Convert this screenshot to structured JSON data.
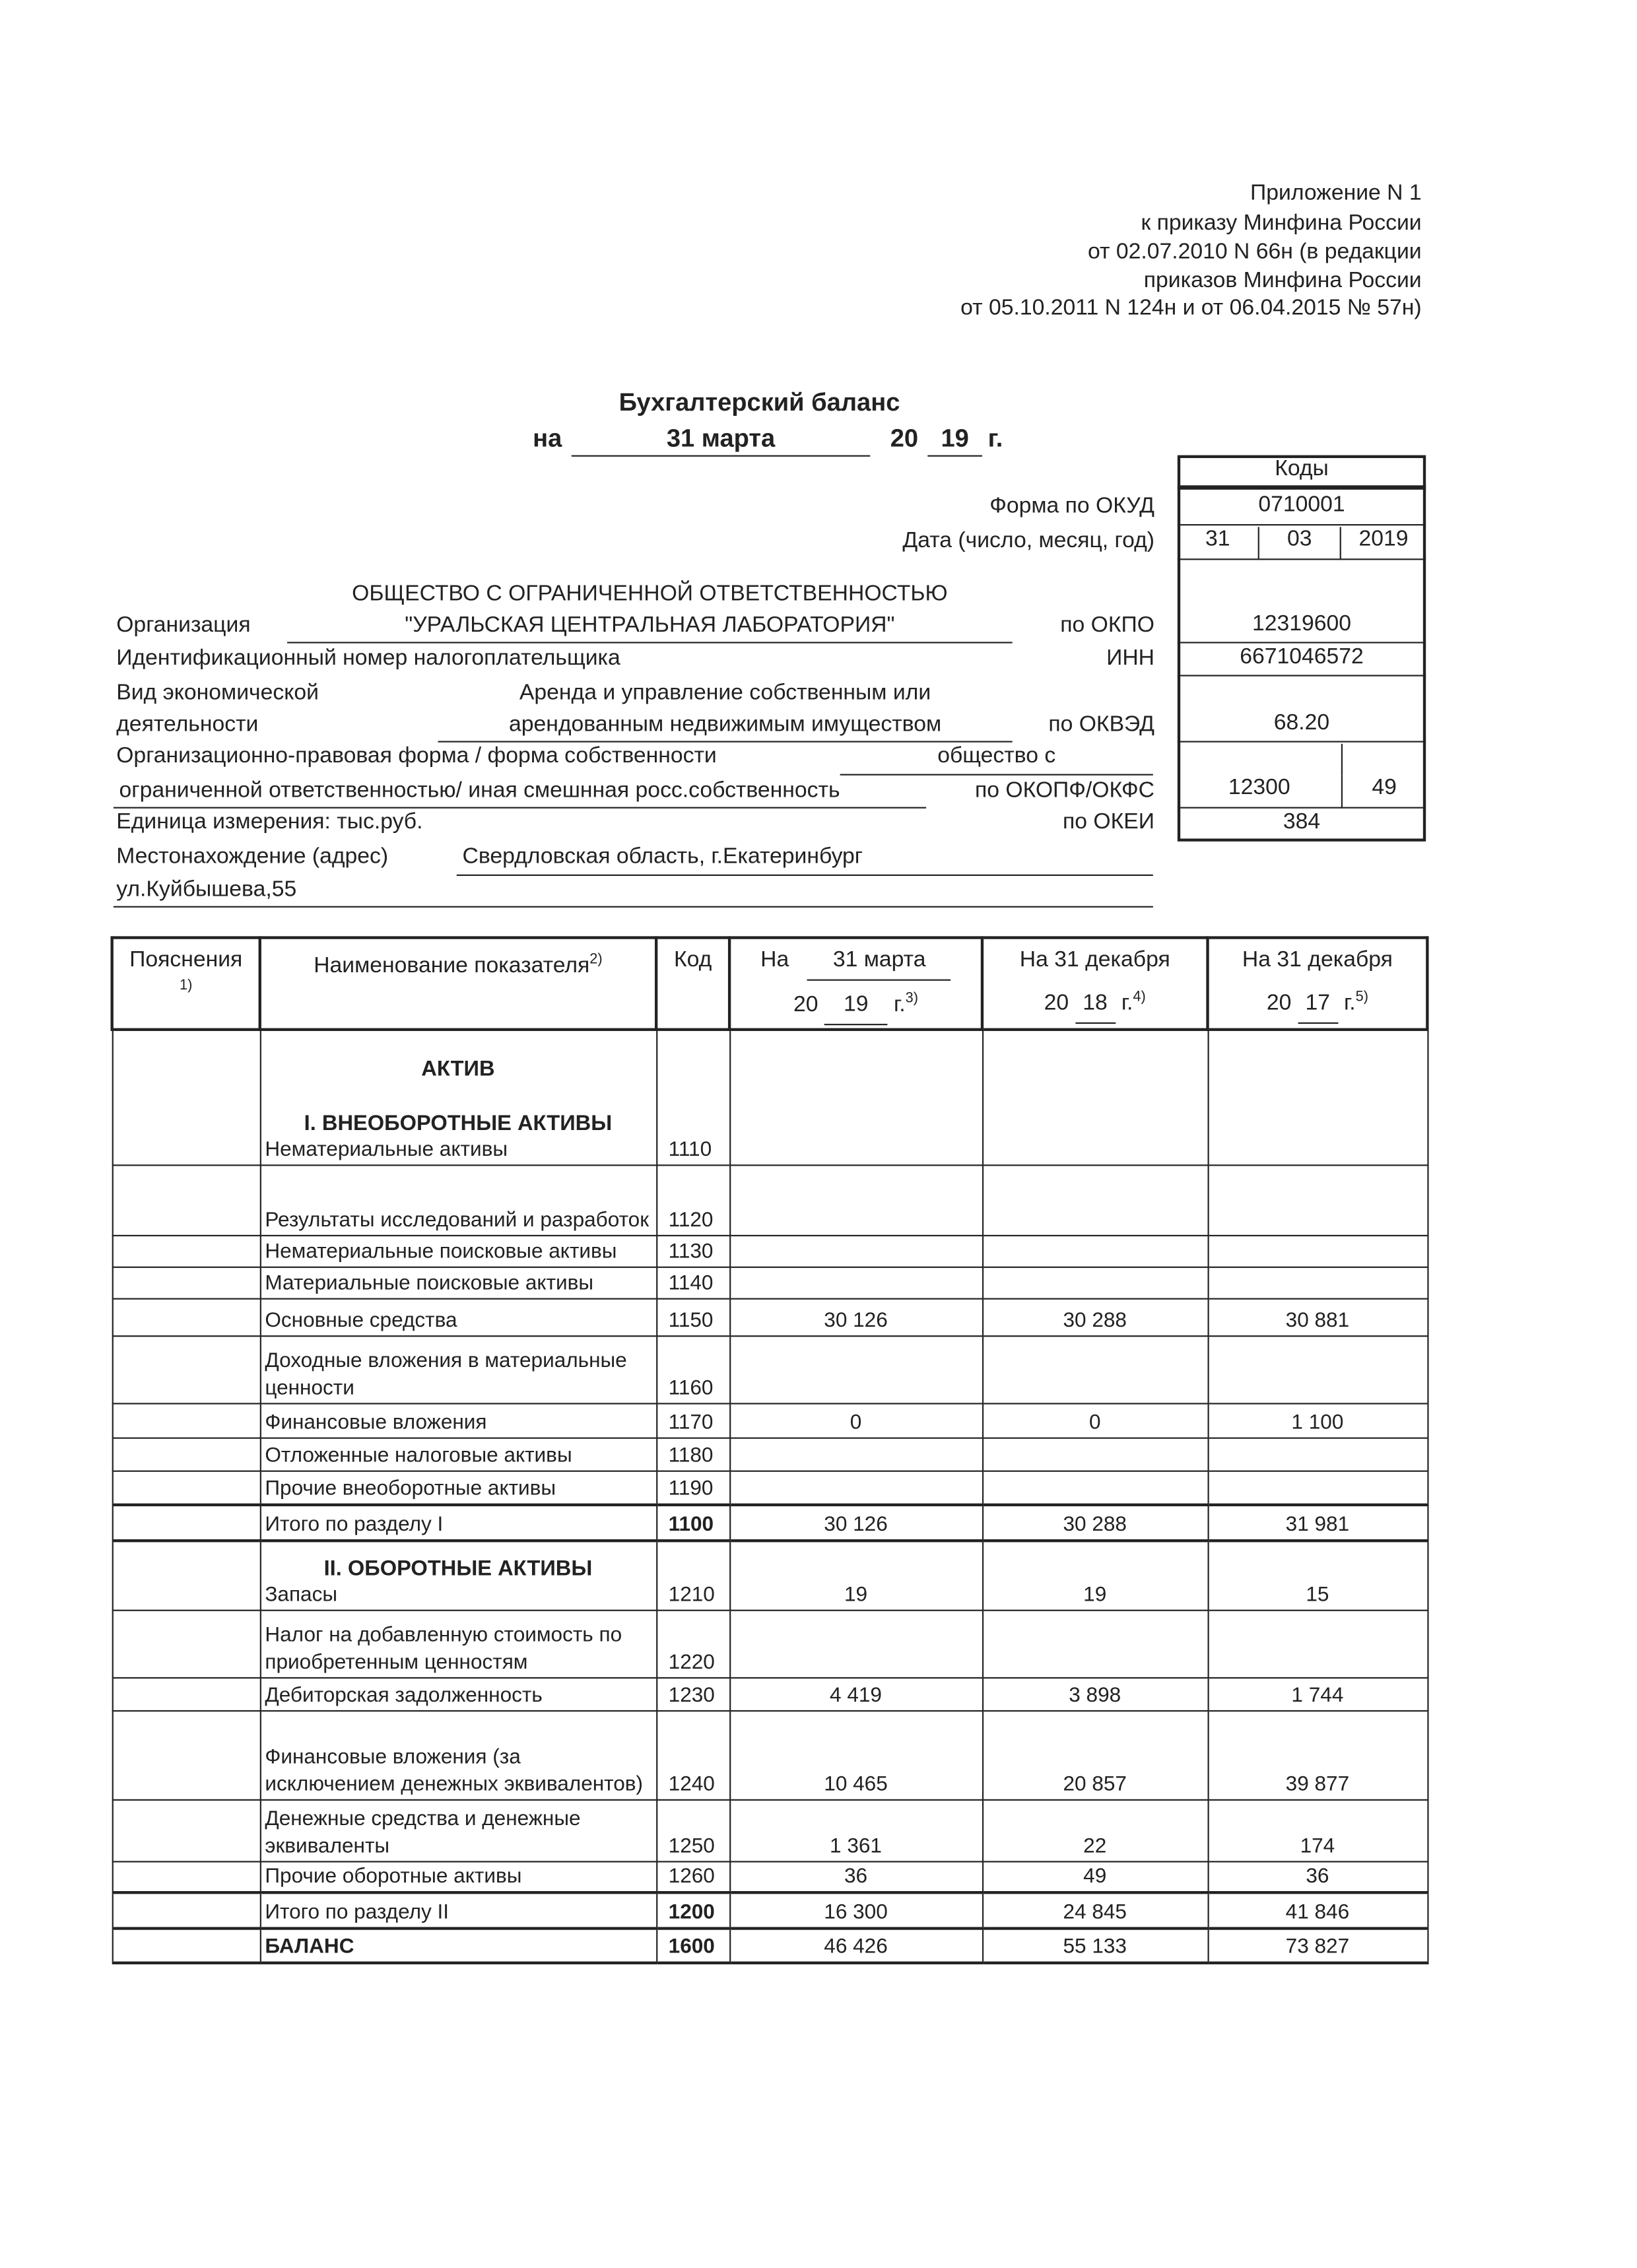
{
  "appendix": [
    "Приложение N 1",
    "к приказу Минфина России",
    "от 02.07.2010 N 66н (в редакции",
    "приказов Минфина России",
    "от 05.10.2011 N 124н и от 06.04.2015 № 57н)"
  ],
  "title": "Бухгалтерский баланс",
  "date_line": {
    "prefix": "на",
    "day_month": "31 марта",
    "century": "20",
    "year": "19",
    "suffix": "г."
  },
  "codes": {
    "header": "Коды",
    "okud_label": "Форма по ОКУД",
    "okud": "0710001",
    "date_label": "Дата (число, месяц, год)",
    "day": "31",
    "month": "03",
    "year": "2019",
    "okpo_label": "по ОКПО",
    "okpo": "12319600",
    "inn_label": "ИНН",
    "inn": "6671046572",
    "okved_label": "по ОКВЭД",
    "okved": "68.20",
    "okopf_label": "по ОКОПФ/ОКФС",
    "okopf": "12300",
    "okfs": "49",
    "okei_label": "по ОКЕИ",
    "okei": "384"
  },
  "org": {
    "label": "Организация",
    "name_line1": "ОБЩЕСТВО С ОГРАНИЧЕННОЙ ОТВЕТСТВЕННОСТЬЮ",
    "name_line2": "\"УРАЛЬСКАЯ ЦЕНТРАЛЬНАЯ ЛАБОРАТОРИЯ\"",
    "inn_label": "Идентификационный номер налогоплательщика",
    "activity_label1": "Вид экономической",
    "activity_label2": "деятельности",
    "activity_value1": "Аренда и управление собственным или",
    "activity_value2": "арендованным недвижимым имуществом",
    "legal_form_label": "Организационно-правовая форма / форма собственности",
    "legal_form_value1": "общество с",
    "legal_form_value2": "ограниченной ответственностью/ иная смешнная росс.собственность",
    "unit_label": "Единица измерения: тыс.руб.",
    "address_label": "Местонахождение (адрес)",
    "address_value1": "Свердловская область, г.Екатеринбург",
    "address_value2": "ул.Куйбышева,55"
  },
  "table": {
    "headers": {
      "notes": "Пояснения",
      "notes_sup": "1)",
      "name": "Наименование показателя",
      "name_sup": "2)",
      "code": "Код",
      "col1_prefix": "На",
      "col1_date": "31 марта",
      "col1_century": "20",
      "col1_year": "19",
      "col1_suffix": "г.",
      "col1_sup": "3)",
      "col2_top": "На 31 декабря",
      "col2_century": "20",
      "col2_year": "18",
      "col2_suffix": "г.",
      "col2_sup": "4)",
      "col3_top": "На 31 декабря",
      "col3_century": "20",
      "col3_year": "17",
      "col3_suffix": "г.",
      "col3_sup": "5)"
    },
    "rows": [
      {
        "heading": [
          "АКТИВ",
          "",
          "I. ВНЕОБОРОТНЫЕ АКТИВЫ"
        ],
        "name": "Нематериальные активы",
        "code": "1110",
        "v": [
          "",
          "",
          ""
        ]
      },
      {
        "name": "Результаты исследований и разработок",
        "code": "1120",
        "v": [
          "",
          "",
          ""
        ]
      },
      {
        "name": "Нематериальные поисковые активы",
        "code": "1130",
        "v": [
          "",
          "",
          ""
        ]
      },
      {
        "name": "Материальные поисковые активы",
        "code": "1140",
        "v": [
          "",
          "",
          ""
        ]
      },
      {
        "name": "Основные средства",
        "code": "1150",
        "v": [
          "30 126",
          "30 288",
          "30 881"
        ]
      },
      {
        "name": "Доходные вложения в материальные ценности",
        "code": "1160",
        "v": [
          "",
          "",
          ""
        ]
      },
      {
        "name": "Финансовые вложения",
        "code": "1170",
        "v": [
          "0",
          "0",
          "1 100"
        ]
      },
      {
        "name": "Отложенные налоговые активы",
        "code": "1180",
        "v": [
          "",
          "",
          ""
        ]
      },
      {
        "name": "Прочие внеоборотные активы",
        "code": "1190",
        "v": [
          "",
          "",
          ""
        ]
      },
      {
        "name": "Итого по разделу I",
        "code": "1100",
        "v": [
          "30 126",
          "30 288",
          "31 981"
        ],
        "total": true
      },
      {
        "heading": [
          "II. ОБОРОТНЫЕ АКТИВЫ"
        ],
        "name": "Запасы",
        "code": "1210",
        "v": [
          "19",
          "19",
          "15"
        ]
      },
      {
        "name": "Налог на добавленную стоимость по приобретенным ценностям",
        "code": "1220",
        "v": [
          "",
          "",
          ""
        ]
      },
      {
        "name": "Дебиторская задолженность",
        "code": "1230",
        "v": [
          "4 419",
          "3 898",
          "1 744"
        ]
      },
      {
        "name": "Финансовые вложения (за исключением денежных эквивалентов)",
        "code": "1240",
        "v": [
          "10 465",
          "20 857",
          "39 877"
        ]
      },
      {
        "name": "Денежные средства и денежные эквиваленты",
        "code": "1250",
        "v": [
          "1 361",
          "22",
          "174"
        ]
      },
      {
        "name": "Прочие оборотные активы",
        "code": "1260",
        "v": [
          "36",
          "49",
          "36"
        ]
      },
      {
        "name": "Итого по разделу II",
        "code": "1200",
        "v": [
          "16 300",
          "24 845",
          "41 846"
        ],
        "total": true
      },
      {
        "name": "БАЛАНС",
        "code": "1600",
        "v": [
          "46 426",
          "55 133",
          "73 827"
        ],
        "total": true,
        "boldname": true
      }
    ]
  }
}
